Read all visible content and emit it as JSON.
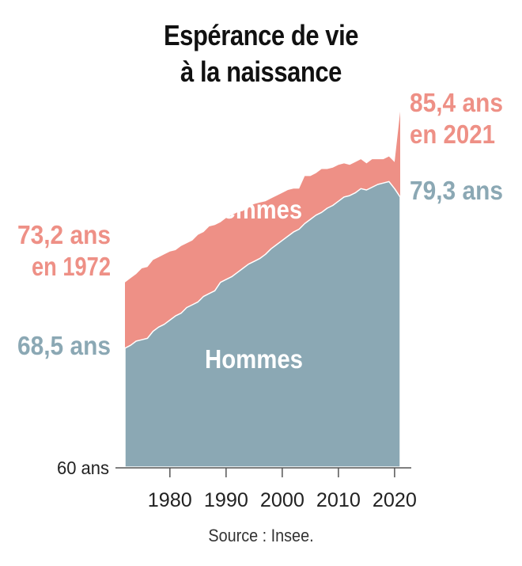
{
  "title_line1": "Espérance de vie",
  "title_line2": "à la naissance",
  "source": "Source : Insee.",
  "colors": {
    "femmes": "#ee9086",
    "hommes": "#8ba8b4",
    "axis": "#555555",
    "label_light": "#ffffff"
  },
  "chart_data": {
    "type": "area",
    "ylim": [
      60,
      86.5
    ],
    "xlim": [
      1972,
      2021
    ],
    "x": [
      1972,
      1973,
      1974,
      1975,
      1976,
      1977,
      1978,
      1979,
      1980,
      1981,
      1982,
      1983,
      1984,
      1985,
      1986,
      1987,
      1988,
      1989,
      1990,
      1991,
      1992,
      1993,
      1994,
      1995,
      1996,
      1997,
      1998,
      1999,
      2000,
      2001,
      2002,
      2003,
      2004,
      2005,
      2006,
      2007,
      2008,
      2009,
      2010,
      2011,
      2012,
      2013,
      2014,
      2015,
      2016,
      2017,
      2018,
      2019,
      2020,
      2021
    ],
    "series": [
      {
        "name": "Femmes",
        "values": [
          73.2,
          73.5,
          73.8,
          74.2,
          74.3,
          74.8,
          75.0,
          75.2,
          75.4,
          75.5,
          75.8,
          76.0,
          76.2,
          76.6,
          76.8,
          77.2,
          77.3,
          77.5,
          77.8,
          78.0,
          78.2,
          78.3,
          78.6,
          78.8,
          78.9,
          79.0,
          79.2,
          79.4,
          79.6,
          79.8,
          79.9,
          79.9,
          80.8,
          80.8,
          81.0,
          81.3,
          81.3,
          81.4,
          81.6,
          81.7,
          81.6,
          81.8,
          82.0,
          81.7,
          82.0,
          82.0,
          82.0,
          82.2,
          81.8,
          85.4
        ]
      },
      {
        "name": "Hommes",
        "values": [
          68.5,
          68.7,
          69.0,
          69.1,
          69.2,
          69.7,
          70.0,
          70.2,
          70.5,
          70.8,
          71.0,
          71.4,
          71.6,
          71.8,
          72.2,
          72.4,
          72.6,
          73.2,
          73.4,
          73.6,
          73.9,
          74.2,
          74.5,
          74.7,
          74.9,
          75.2,
          75.6,
          75.9,
          76.2,
          76.5,
          76.8,
          77.0,
          77.4,
          77.7,
          78.0,
          78.2,
          78.5,
          78.7,
          79.0,
          79.3,
          79.4,
          79.6,
          79.9,
          79.8,
          80.0,
          80.2,
          80.3,
          80.4,
          79.9,
          79.3
        ]
      }
    ],
    "xticks": [
      "1980",
      "1990",
      "2000",
      "2010",
      "2020"
    ],
    "xtick_values": [
      1980,
      1990,
      2000,
      2010,
      2020
    ],
    "y_axis_label": "60 ans",
    "area_labels": {
      "femmes": "Femmes",
      "hommes": "Hommes"
    },
    "annotations": {
      "start_femmes_line1": "73,2 ans",
      "start_femmes_line2": "en 1972",
      "start_hommes": "68,5 ans",
      "end_femmes_line1": "85,4 ans",
      "end_femmes_line2": "en 2021",
      "end_hommes": "79,3 ans"
    }
  }
}
